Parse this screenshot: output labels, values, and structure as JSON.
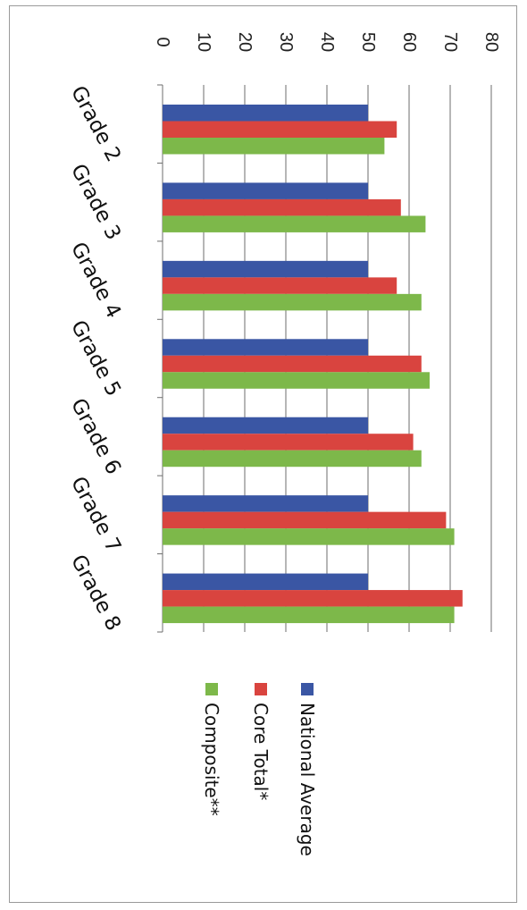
{
  "chart_data": {
    "type": "bar",
    "orientation": "horizontal",
    "rotated": "90deg-clockwise",
    "categories": [
      "Grade 2",
      "Grade 3",
      "Grade 4",
      "Grade 5",
      "Grade 6",
      "Grade 7",
      "Grade 8"
    ],
    "series": [
      {
        "name": "National Average",
        "color": "#3a56a4",
        "values": [
          50,
          50,
          50,
          50,
          50,
          50,
          50
        ]
      },
      {
        "name": "Core Total*",
        "color": "#d9443f",
        "values": [
          57,
          58,
          57,
          63,
          61,
          69,
          73
        ]
      },
      {
        "name": "Composite**",
        "color": "#7db84a",
        "values": [
          54,
          64,
          63,
          65,
          63,
          71,
          71
        ]
      }
    ],
    "xlim": [
      0,
      80
    ],
    "ticks": [
      "0",
      "10",
      "20",
      "30",
      "40",
      "50",
      "60",
      "70",
      "80"
    ],
    "grid": true,
    "legend_position": "right"
  }
}
